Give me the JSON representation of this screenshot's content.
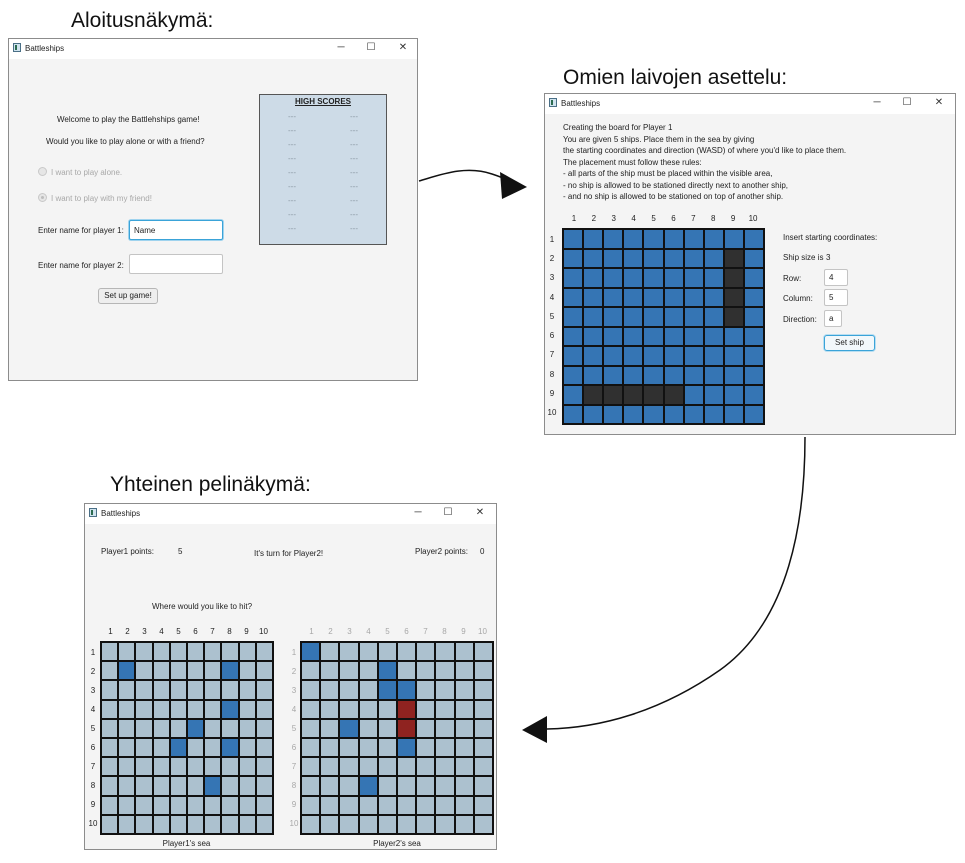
{
  "captions": {
    "start_view": "Aloitusnäkymä:",
    "placement_view": "Omien laivojen asettelu:",
    "game_view": "Yhteinen pelinäkymä:"
  },
  "window_controls": {
    "minimize": "─",
    "maximize": "☐",
    "close": "✕"
  },
  "start_window": {
    "title": "Battleships",
    "welcome": "Welcome to play the Battlehships game!",
    "question": "Would you like to play alone or with a friend?",
    "radio_alone": "I want to play alone.",
    "radio_friend": "I want to play with my friend!",
    "player1_label": "Enter name for player 1:",
    "player1_value": "Name",
    "player2_label": "Enter name for player 2:",
    "player2_value": "",
    "setup_button": "Set up game!",
    "high_scores": {
      "title": "HIGH SCORES",
      "rows": [
        [
          "---",
          "---"
        ],
        [
          "---",
          "---"
        ],
        [
          "---",
          "---"
        ],
        [
          "---",
          "---"
        ],
        [
          "---",
          "---"
        ],
        [
          "---",
          "---"
        ],
        [
          "---",
          "---"
        ],
        [
          "---",
          "---"
        ],
        [
          "---",
          "---"
        ]
      ]
    }
  },
  "placement_window": {
    "title": "Battleships",
    "instructions": [
      "Creating the board for Player 1",
      "You are given 5 ships. Place them in the sea by giving",
      "the starting coordinates and direction (WASD) of where you'd like to place them.",
      "The placement must follow these rules:",
      " - all parts of the ship must be placed within the visible area,",
      " - no ship is allowed to be stationed directly next to another ship,",
      " - and no ship is allowed to be stationed on top of another ship."
    ],
    "col_labels": [
      "1",
      "2",
      "3",
      "4",
      "5",
      "6",
      "7",
      "8",
      "9",
      "10"
    ],
    "row_labels": [
      "1",
      "2",
      "3",
      "4",
      "5",
      "6",
      "7",
      "8",
      "9",
      "10"
    ],
    "ships": [
      [
        2,
        9
      ],
      [
        3,
        9
      ],
      [
        4,
        9
      ],
      [
        5,
        9
      ],
      [
        6,
        9
      ],
      [
        9,
        2
      ],
      [
        9,
        3
      ],
      [
        9,
        4
      ],
      [
        9,
        5
      ]
    ],
    "insert_label": "Insert starting coordinates:",
    "ship_size_label": "Ship size is",
    "ship_size_value": "3",
    "row_label": "Row:",
    "row_value": "4",
    "column_label": "Column:",
    "column_value": "5",
    "direction_label": "Direction:",
    "direction_value": "a",
    "set_ship_button": "Set ship"
  },
  "game_window": {
    "title": "Battleships",
    "player1_points_label": "Player1 points:",
    "player1_points": "5",
    "turn_text": "It's turn for Player2!",
    "player2_points_label": "Player2 points:",
    "player2_points": "0",
    "prompt": "Where would you like to hit?",
    "col_labels": [
      "1",
      "2",
      "3",
      "4",
      "5",
      "6",
      "7",
      "8",
      "9",
      "10"
    ],
    "row_labels": [
      "1",
      "2",
      "3",
      "4",
      "5",
      "6",
      "7",
      "8",
      "9",
      "10"
    ],
    "player1_sea_label": "Player1's sea",
    "player2_sea_label": "Player2's sea",
    "player1_sea_blue": [
      [
        2,
        2
      ],
      [
        8,
        2
      ],
      [
        8,
        4
      ],
      [
        6,
        5
      ],
      [
        5,
        6
      ],
      [
        8,
        6
      ],
      [
        7,
        8
      ]
    ],
    "player2_sea_blue": [
      [
        1,
        1
      ],
      [
        5,
        2
      ],
      [
        5,
        3
      ],
      [
        6,
        3
      ],
      [
        3,
        5
      ],
      [
        6,
        6
      ],
      [
        4,
        8
      ]
    ],
    "player2_sea_red": [
      [
        6,
        4
      ],
      [
        6,
        5
      ]
    ],
    "colors": {
      "sea_blue": "#3575b4",
      "ship": "#303030",
      "fog": "#acc1cf",
      "hit": "#8f2320"
    }
  }
}
